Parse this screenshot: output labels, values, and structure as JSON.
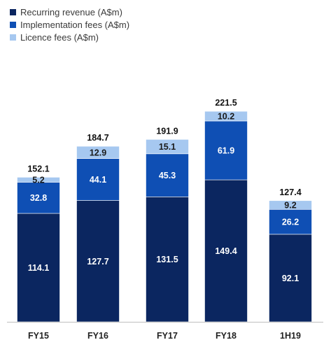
{
  "chart_data": {
    "type": "bar",
    "stacked": true,
    "categories": [
      "FY15",
      "FY16",
      "FY17",
      "FY18",
      "1H19"
    ],
    "series": [
      {
        "name": "Recurring revenue (A$m)",
        "color": "#0b2660",
        "label_color": "#ffffff",
        "values": [
          114.1,
          127.7,
          131.5,
          149.4,
          92.1
        ]
      },
      {
        "name": "Implementation fees (A$m)",
        "color": "#0f4fb4",
        "label_color": "#ffffff",
        "values": [
          32.8,
          44.1,
          45.3,
          61.9,
          26.2
        ]
      },
      {
        "name": "Licence fees (A$m)",
        "color": "#a6c8f0",
        "label_color": "#1a1a1a",
        "values": [
          5.2,
          12.9,
          15.1,
          10.2,
          9.2
        ]
      }
    ],
    "totals": [
      152.1,
      184.7,
      191.9,
      221.5,
      127.4
    ],
    "ylim": [
      0,
      230
    ],
    "legend_position": "top-left",
    "grid": false,
    "title": "",
    "xlabel": "",
    "ylabel": ""
  }
}
